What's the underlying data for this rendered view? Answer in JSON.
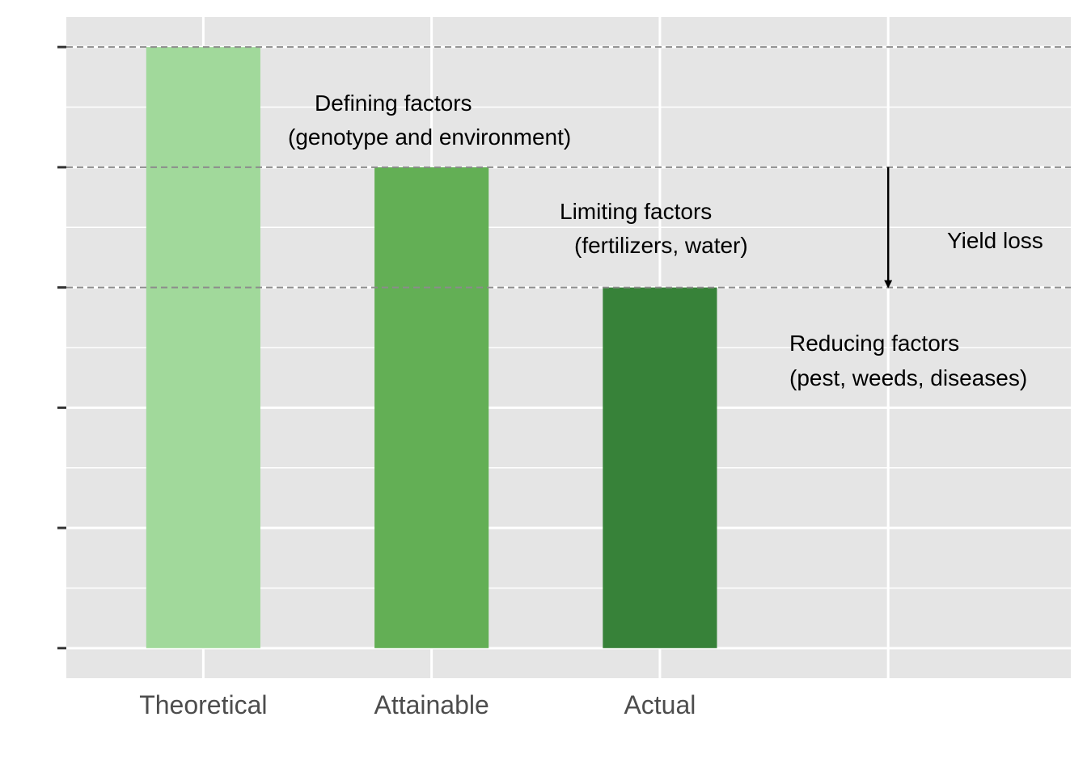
{
  "chart_data": {
    "type": "bar",
    "categories": [
      "Theoretical",
      "Attainable",
      "Actual"
    ],
    "values": [
      5,
      4,
      3
    ],
    "ylim": [
      -0.25,
      5.25
    ],
    "y_ticks": [
      0,
      1,
      2,
      3,
      4,
      5
    ],
    "y_tick_labels_shown": false,
    "grid": true,
    "bar_colors": [
      "#a1d99b",
      "#63af55",
      "#378239"
    ],
    "reference_lines": [
      5,
      4,
      3
    ],
    "reference_line_color": "#8c8c8c",
    "annotations": [
      {
        "lines": [
          "Defining factors",
          "(genotype and environment)"
        ]
      },
      {
        "lines": [
          "Limiting factors",
          "(fertilizers, water)"
        ]
      },
      {
        "lines": [
          "Reducing factors",
          "(pest, weeds, diseases)"
        ]
      },
      {
        "lines": [
          "Yield loss"
        ]
      }
    ],
    "arrow": {
      "from": 4,
      "to": 3,
      "category_index": 3
    }
  },
  "colors": {
    "panel": "#e5e5e5",
    "grid": "#ffffff",
    "tick": "#333333",
    "text": "#4d4d4d"
  }
}
